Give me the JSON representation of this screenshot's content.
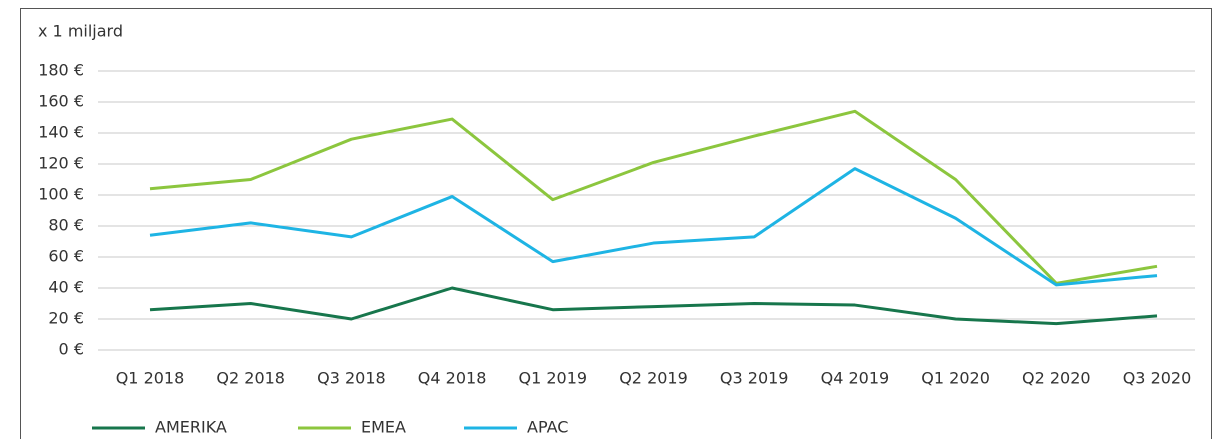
{
  "chart_data": {
    "type": "line",
    "unit_label": "x 1 miljard",
    "categories": [
      "Q1 2018",
      "Q2 2018",
      "Q3 2018",
      "Q4 2018",
      "Q1 2019",
      "Q2 2019",
      "Q3 2019",
      "Q4 2019",
      "Q1 2020",
      "Q2 2020",
      "Q3 2020"
    ],
    "series": [
      {
        "name": "AMERIKA",
        "color": "#17764c",
        "values": [
          26,
          30,
          20,
          40,
          26,
          28,
          30,
          29,
          20,
          17,
          22
        ]
      },
      {
        "name": "EMEA",
        "color": "#8cc63e",
        "values": [
          104,
          110,
          136,
          149,
          97,
          121,
          138,
          154,
          110,
          43,
          54
        ]
      },
      {
        "name": "APAC",
        "color": "#1eb4e4",
        "values": [
          74,
          82,
          73,
          99,
          57,
          69,
          73,
          117,
          85,
          42,
          48
        ]
      }
    ],
    "ylim": [
      0,
      180
    ],
    "yticks": [
      {
        "value": 0,
        "label": "0 €"
      },
      {
        "value": 20,
        "label": "20 €"
      },
      {
        "value": 40,
        "label": "40 €"
      },
      {
        "value": 60,
        "label": "60 €"
      },
      {
        "value": 80,
        "label": "80 €"
      },
      {
        "value": 100,
        "label": "100 €"
      },
      {
        "value": 120,
        "label": "120 €"
      },
      {
        "value": 140,
        "label": "140 €"
      },
      {
        "value": 160,
        "label": "160 €"
      },
      {
        "value": 180,
        "label": "180 €"
      }
    ],
    "grid": true,
    "legend": "bottom"
  }
}
